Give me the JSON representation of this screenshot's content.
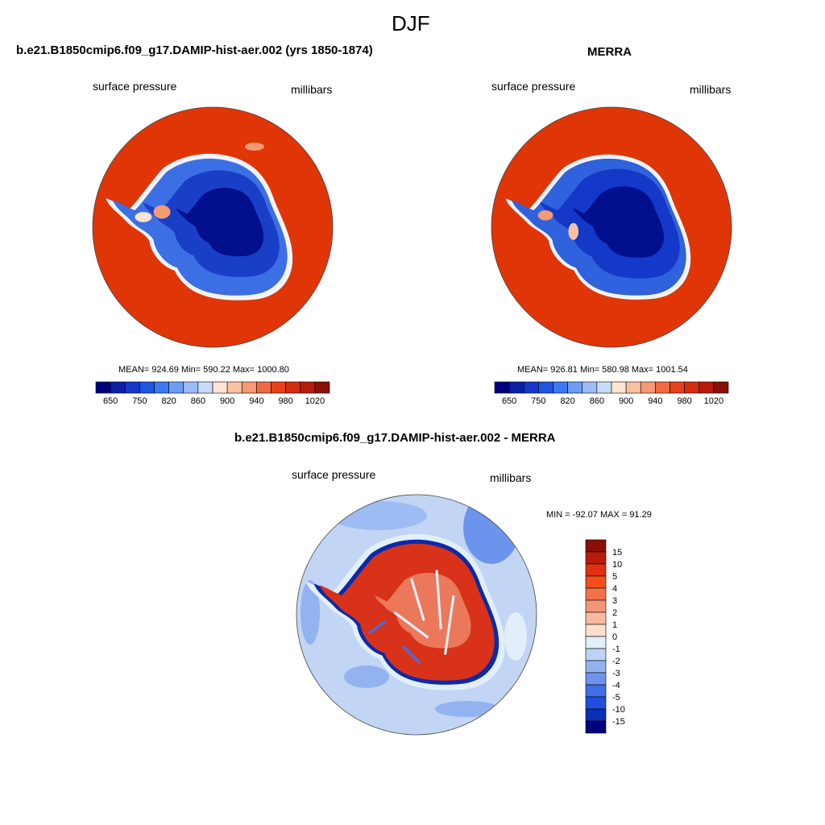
{
  "figure": {
    "season": "DJF"
  },
  "panels": [
    {
      "title": "b.e21.B1850cmip6.f09_g17.DAMIP-hist-aer.002 (yrs 1850-1874)",
      "left_label": "surface pressure",
      "right_label": "millibars",
      "stats": "MEAN= 924.69  Min= 590.22  Max= 1000.80"
    },
    {
      "title": "MERRA",
      "left_label": "surface pressure",
      "right_label": "millibars",
      "stats": "MEAN= 926.81  Min= 580.98  Max= 1001.54"
    },
    {
      "title": "b.e21.B1850cmip6.f09_g17.DAMIP-hist-aer.002 - MERRA",
      "left_label": "surface pressure",
      "right_label": "millibars",
      "stats": "MIN = -92.07 MAX =  91.29"
    }
  ],
  "abs_colorbar": {
    "tick_labels": [
      "650",
      "750",
      "820",
      "860",
      "900",
      "940",
      "980",
      "1020"
    ],
    "colors": [
      "#00007f",
      "#0a1fa6",
      "#1438c7",
      "#1f55de",
      "#3e78ef",
      "#6d9cf3",
      "#9dbcf3",
      "#c9dbf7",
      "#fde3d2",
      "#f9c1a4",
      "#f49a75",
      "#ee6b45",
      "#e6411c",
      "#d22d0c",
      "#b71c0a",
      "#8a0f05"
    ]
  },
  "diff_colorbar": {
    "tick_labels": [
      "15",
      "10",
      "5",
      "4",
      "3",
      "2",
      "1",
      "0",
      "-1",
      "-2",
      "-3",
      "-4",
      "-5",
      "-10",
      "-15"
    ],
    "colors": [
      "#8a0f05",
      "#b71c0a",
      "#e0300f",
      "#f44e1c",
      "#f2734a",
      "#f49676",
      "#f8b9a0",
      "#fddfcc",
      "#e2eef9",
      "#bcd3f5",
      "#92b3f0",
      "#6d94ec",
      "#3f6fe6",
      "#1f4fe0",
      "#0a2fb5",
      "#00007f"
    ]
  },
  "colors": {
    "ocean_abs": "#e03507",
    "ocean_diff": "#c2d5f4",
    "ice_deep": "#02108e",
    "ice_mid": "#1a3fc7",
    "ice_edge": "#3d6fe4",
    "coast_white": "#f2f4fb",
    "diff_red": "#d8321a",
    "diff_dark_blue": "#0b2aa8"
  }
}
